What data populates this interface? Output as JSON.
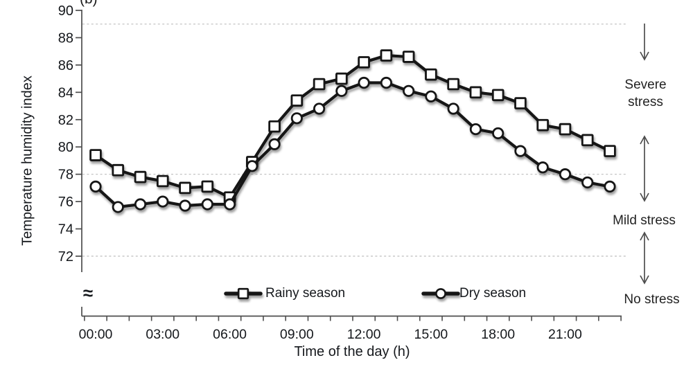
{
  "panel_label": "(b)",
  "chart_data": {
    "type": "line",
    "title": "",
    "xlabel": "Time of the day (h)",
    "ylabel": "Temperature humidity index",
    "x_hours": [
      0,
      1,
      2,
      3,
      4,
      5,
      6,
      7,
      8,
      9,
      10,
      11,
      12,
      13,
      14,
      15,
      16,
      17,
      18,
      19,
      20,
      21,
      22,
      23
    ],
    "x_tick_hours": [
      0,
      3,
      6,
      9,
      12,
      15,
      18,
      21
    ],
    "x_tick_labels": [
      "00:00",
      "03:00",
      "06:00",
      "09:00",
      "12:00",
      "15:00",
      "18:00",
      "21:00"
    ],
    "y_ticks": [
      90,
      88,
      86,
      84,
      82,
      80,
      78,
      76,
      74,
      72
    ],
    "ylim": [
      71.5,
      90
    ],
    "axis_break_symbol": "≈",
    "grid": "off",
    "threshold_lines": [
      89,
      78,
      72
    ],
    "legend_position": "bottom-center",
    "series": [
      {
        "name": "Rainy season",
        "marker": "square",
        "values": [
          79.4,
          78.3,
          77.8,
          77.5,
          77.0,
          77.1,
          76.3,
          78.9,
          81.5,
          83.4,
          84.6,
          85.0,
          86.2,
          86.7,
          86.6,
          85.3,
          84.6,
          84.0,
          83.8,
          83.2,
          81.6,
          81.3,
          80.5,
          79.7
        ]
      },
      {
        "name": "Dry season",
        "marker": "circle",
        "values": [
          77.1,
          75.6,
          75.8,
          76.0,
          75.7,
          75.8,
          75.8,
          78.6,
          80.2,
          82.1,
          82.8,
          84.1,
          84.7,
          84.7,
          84.1,
          83.7,
          82.8,
          81.3,
          81.0,
          79.7,
          78.5,
          78.0,
          77.4,
          77.1
        ]
      }
    ],
    "annotations": [
      {
        "label": "Severe stress",
        "arrow": "down"
      },
      {
        "label": "Mild stress",
        "arrow": "double"
      },
      {
        "label": "No stress",
        "arrow": "double"
      }
    ],
    "colors": {
      "line": "#121212",
      "marker_fill": "#ffffff",
      "axis": "#4d4d4d",
      "threshold_dash": "#c4c4c4",
      "arrow": "#4d4d4d"
    }
  }
}
